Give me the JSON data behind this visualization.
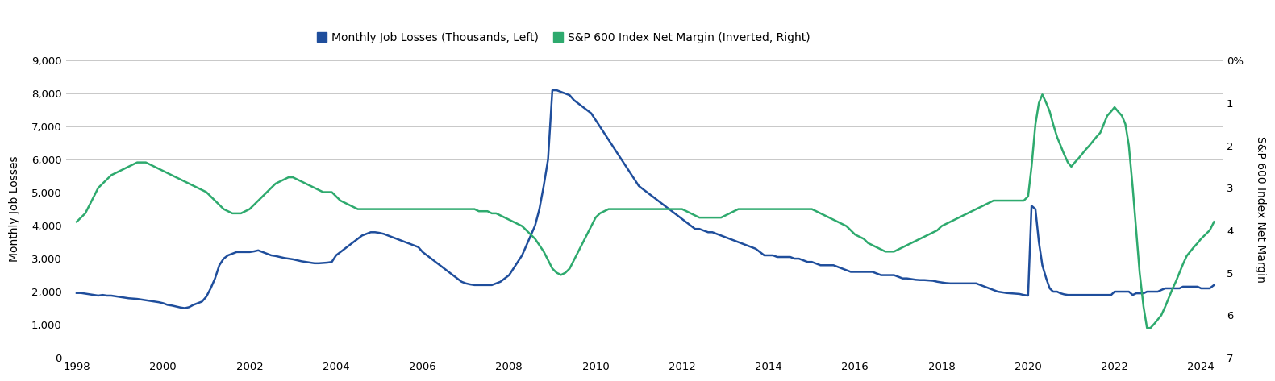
{
  "legend_labels": [
    "Monthly Job Losses (Thousands, Left)",
    "S&P 600 Index Net Margin (Inverted, Right)"
  ],
  "legend_colors": [
    "#1f4e9c",
    "#2eaa6e"
  ],
  "line_blue_color": "#1f4e9c",
  "line_green_color": "#2eaa6e",
  "left_ylabel": "Monthly Job Losses",
  "right_ylabel": "S&P 600 Index Net Margin",
  "left_ylim": [
    0,
    9000
  ],
  "left_yticks": [
    0,
    1000,
    2000,
    3000,
    4000,
    5000,
    6000,
    7000,
    8000,
    9000
  ],
  "right_ylim": [
    0,
    7
  ],
  "right_yticks": [
    0,
    1,
    2,
    3,
    4,
    5,
    6,
    7
  ],
  "right_yticklabels": [
    "0%",
    "1",
    "2",
    "3",
    "4",
    "5",
    "6",
    "7"
  ],
  "xlim_start": 1997.75,
  "xlim_end": 2024.5,
  "xticks": [
    1998,
    2000,
    2002,
    2004,
    2006,
    2008,
    2010,
    2012,
    2014,
    2016,
    2018,
    2020,
    2022,
    2024
  ],
  "background_color": "#ffffff",
  "grid_color": "#c8c8c8",
  "blue_x": [
    1998.0,
    1998.1,
    1998.2,
    1998.3,
    1998.4,
    1998.5,
    1998.6,
    1998.7,
    1998.8,
    1998.9,
    1999.0,
    1999.1,
    1999.2,
    1999.3,
    1999.4,
    1999.5,
    1999.6,
    1999.7,
    1999.8,
    1999.9,
    2000.0,
    2000.1,
    2000.2,
    2000.3,
    2000.4,
    2000.5,
    2000.6,
    2000.7,
    2000.8,
    2000.9,
    2001.0,
    2001.1,
    2001.2,
    2001.3,
    2001.4,
    2001.5,
    2001.6,
    2001.7,
    2001.8,
    2001.9,
    2002.0,
    2002.1,
    2002.2,
    2002.3,
    2002.4,
    2002.5,
    2002.6,
    2002.7,
    2002.8,
    2002.9,
    2003.0,
    2003.1,
    2003.2,
    2003.3,
    2003.4,
    2003.5,
    2003.6,
    2003.7,
    2003.8,
    2003.9,
    2004.0,
    2004.1,
    2004.2,
    2004.3,
    2004.4,
    2004.5,
    2004.6,
    2004.7,
    2004.8,
    2004.9,
    2005.0,
    2005.1,
    2005.2,
    2005.3,
    2005.4,
    2005.5,
    2005.6,
    2005.7,
    2005.8,
    2005.9,
    2006.0,
    2006.1,
    2006.2,
    2006.3,
    2006.4,
    2006.5,
    2006.6,
    2006.7,
    2006.8,
    2006.9,
    2007.0,
    2007.1,
    2007.2,
    2007.3,
    2007.4,
    2007.5,
    2007.6,
    2007.7,
    2007.8,
    2007.9,
    2008.0,
    2008.1,
    2008.2,
    2008.3,
    2008.4,
    2008.5,
    2008.6,
    2008.7,
    2008.8,
    2008.9,
    2009.0,
    2009.1,
    2009.2,
    2009.3,
    2009.4,
    2009.5,
    2009.6,
    2009.7,
    2009.8,
    2009.9,
    2010.0,
    2010.1,
    2010.2,
    2010.3,
    2010.4,
    2010.5,
    2010.6,
    2010.7,
    2010.8,
    2010.9,
    2011.0,
    2011.1,
    2011.2,
    2011.3,
    2011.4,
    2011.5,
    2011.6,
    2011.7,
    2011.8,
    2011.9,
    2012.0,
    2012.1,
    2012.2,
    2012.3,
    2012.4,
    2012.5,
    2012.6,
    2012.7,
    2012.8,
    2012.9,
    2013.0,
    2013.1,
    2013.2,
    2013.3,
    2013.4,
    2013.5,
    2013.6,
    2013.7,
    2013.8,
    2013.9,
    2014.0,
    2014.1,
    2014.2,
    2014.3,
    2014.4,
    2014.5,
    2014.6,
    2014.7,
    2014.8,
    2014.9,
    2015.0,
    2015.1,
    2015.2,
    2015.3,
    2015.4,
    2015.5,
    2015.6,
    2015.7,
    2015.8,
    2015.9,
    2016.0,
    2016.1,
    2016.2,
    2016.3,
    2016.4,
    2016.5,
    2016.6,
    2016.7,
    2016.8,
    2016.9,
    2017.0,
    2017.1,
    2017.2,
    2017.3,
    2017.4,
    2017.5,
    2017.6,
    2017.7,
    2017.8,
    2017.9,
    2018.0,
    2018.1,
    2018.2,
    2018.3,
    2018.4,
    2018.5,
    2018.6,
    2018.7,
    2018.8,
    2018.9,
    2019.0,
    2019.1,
    2019.2,
    2019.3,
    2019.4,
    2019.5,
    2019.6,
    2019.7,
    2019.8,
    2019.9,
    2020.0,
    2020.08,
    2020.17,
    2020.25,
    2020.33,
    2020.42,
    2020.5,
    2020.58,
    2020.67,
    2020.75,
    2020.83,
    2020.92,
    2021.0,
    2021.08,
    2021.17,
    2021.25,
    2021.33,
    2021.42,
    2021.5,
    2021.58,
    2021.67,
    2021.75,
    2021.83,
    2021.92,
    2022.0,
    2022.08,
    2022.17,
    2022.25,
    2022.33,
    2022.42,
    2022.5,
    2022.58,
    2022.67,
    2022.75,
    2022.83,
    2022.92,
    2023.0,
    2023.08,
    2023.17,
    2023.25,
    2023.33,
    2023.42,
    2023.5,
    2023.58,
    2023.67,
    2023.75,
    2023.83,
    2023.92,
    2024.0,
    2024.1,
    2024.2,
    2024.3
  ],
  "blue_y": [
    1960,
    1960,
    1940,
    1920,
    1900,
    1880,
    1900,
    1880,
    1880,
    1860,
    1840,
    1820,
    1800,
    1790,
    1780,
    1760,
    1740,
    1720,
    1700,
    1680,
    1650,
    1600,
    1580,
    1550,
    1520,
    1500,
    1530,
    1600,
    1650,
    1700,
    1850,
    2100,
    2400,
    2800,
    3000,
    3100,
    3150,
    3200,
    3200,
    3200,
    3200,
    3220,
    3250,
    3200,
    3150,
    3100,
    3080,
    3050,
    3020,
    3000,
    2980,
    2950,
    2920,
    2900,
    2880,
    2860,
    2860,
    2870,
    2880,
    2900,
    3100,
    3200,
    3300,
    3400,
    3500,
    3600,
    3700,
    3750,
    3800,
    3800,
    3780,
    3750,
    3700,
    3650,
    3600,
    3550,
    3500,
    3450,
    3400,
    3350,
    3200,
    3100,
    3000,
    2900,
    2800,
    2700,
    2600,
    2500,
    2400,
    2300,
    2250,
    2220,
    2200,
    2200,
    2200,
    2200,
    2200,
    2250,
    2300,
    2400,
    2500,
    2700,
    2900,
    3100,
    3400,
    3700,
    4000,
    4500,
    5200,
    6000,
    8100,
    8100,
    8050,
    8000,
    7950,
    7800,
    7700,
    7600,
    7500,
    7400,
    7200,
    7000,
    6800,
    6600,
    6400,
    6200,
    6000,
    5800,
    5600,
    5400,
    5200,
    5100,
    5000,
    4900,
    4800,
    4700,
    4600,
    4500,
    4400,
    4300,
    4200,
    4100,
    4000,
    3900,
    3900,
    3850,
    3800,
    3800,
    3750,
    3700,
    3650,
    3600,
    3550,
    3500,
    3450,
    3400,
    3350,
    3300,
    3200,
    3100,
    3100,
    3100,
    3050,
    3050,
    3050,
    3050,
    3000,
    3000,
    2950,
    2900,
    2900,
    2850,
    2800,
    2800,
    2800,
    2800,
    2750,
    2700,
    2650,
    2600,
    2600,
    2600,
    2600,
    2600,
    2600,
    2550,
    2500,
    2500,
    2500,
    2500,
    2450,
    2400,
    2400,
    2380,
    2360,
    2350,
    2350,
    2340,
    2330,
    2300,
    2280,
    2260,
    2250,
    2250,
    2250,
    2250,
    2250,
    2250,
    2250,
    2200,
    2150,
    2100,
    2050,
    2000,
    1980,
    1960,
    1950,
    1940,
    1930,
    1900,
    1880,
    4600,
    4500,
    3500,
    2800,
    2400,
    2100,
    2000,
    2000,
    1950,
    1920,
    1900,
    1900,
    1900,
    1900,
    1900,
    1900,
    1900,
    1900,
    1900,
    1900,
    1900,
    1900,
    1900,
    2000,
    2000,
    2000,
    2000,
    2000,
    1900,
    1950,
    1950,
    1950,
    2000,
    2000,
    2000,
    2000,
    2050,
    2100,
    2100,
    2100,
    2100,
    2100,
    2150,
    2150,
    2150,
    2150,
    2150,
    2100,
    2100,
    2100,
    2200
  ],
  "green_x": [
    1998.0,
    1998.1,
    1998.2,
    1998.3,
    1998.4,
    1998.5,
    1998.6,
    1998.7,
    1998.8,
    1998.9,
    1999.0,
    1999.1,
    1999.2,
    1999.3,
    1999.4,
    1999.5,
    1999.6,
    1999.7,
    1999.8,
    1999.9,
    2000.0,
    2000.1,
    2000.2,
    2000.3,
    2000.4,
    2000.5,
    2000.6,
    2000.7,
    2000.8,
    2000.9,
    2001.0,
    2001.1,
    2001.2,
    2001.3,
    2001.4,
    2001.5,
    2001.6,
    2001.7,
    2001.8,
    2001.9,
    2002.0,
    2002.1,
    2002.2,
    2002.3,
    2002.4,
    2002.5,
    2002.6,
    2002.7,
    2002.8,
    2002.9,
    2003.0,
    2003.1,
    2003.2,
    2003.3,
    2003.4,
    2003.5,
    2003.6,
    2003.7,
    2003.8,
    2003.9,
    2004.0,
    2004.1,
    2004.2,
    2004.3,
    2004.4,
    2004.5,
    2004.6,
    2004.7,
    2004.8,
    2004.9,
    2005.0,
    2005.1,
    2005.2,
    2005.3,
    2005.4,
    2005.5,
    2005.6,
    2005.7,
    2005.8,
    2005.9,
    2006.0,
    2006.1,
    2006.2,
    2006.3,
    2006.4,
    2006.5,
    2006.6,
    2006.7,
    2006.8,
    2006.9,
    2007.0,
    2007.1,
    2007.2,
    2007.3,
    2007.4,
    2007.5,
    2007.6,
    2007.7,
    2007.8,
    2007.9,
    2008.0,
    2008.1,
    2008.2,
    2008.3,
    2008.4,
    2008.5,
    2008.6,
    2008.7,
    2008.8,
    2008.9,
    2009.0,
    2009.1,
    2009.2,
    2009.3,
    2009.4,
    2009.5,
    2009.6,
    2009.7,
    2009.8,
    2009.9,
    2010.0,
    2010.1,
    2010.2,
    2010.3,
    2010.4,
    2010.5,
    2010.6,
    2010.7,
    2010.8,
    2010.9,
    2011.0,
    2011.1,
    2011.2,
    2011.3,
    2011.4,
    2011.5,
    2011.6,
    2011.7,
    2011.8,
    2011.9,
    2012.0,
    2012.1,
    2012.2,
    2012.3,
    2012.4,
    2012.5,
    2012.6,
    2012.7,
    2012.8,
    2012.9,
    2013.0,
    2013.1,
    2013.2,
    2013.3,
    2013.4,
    2013.5,
    2013.6,
    2013.7,
    2013.8,
    2013.9,
    2014.0,
    2014.1,
    2014.2,
    2014.3,
    2014.4,
    2014.5,
    2014.6,
    2014.7,
    2014.8,
    2014.9,
    2015.0,
    2015.1,
    2015.2,
    2015.3,
    2015.4,
    2015.5,
    2015.6,
    2015.7,
    2015.8,
    2015.9,
    2016.0,
    2016.1,
    2016.2,
    2016.3,
    2016.4,
    2016.5,
    2016.6,
    2016.7,
    2016.8,
    2016.9,
    2017.0,
    2017.1,
    2017.2,
    2017.3,
    2017.4,
    2017.5,
    2017.6,
    2017.7,
    2017.8,
    2017.9,
    2018.0,
    2018.1,
    2018.2,
    2018.3,
    2018.4,
    2018.5,
    2018.6,
    2018.7,
    2018.8,
    2018.9,
    2019.0,
    2019.1,
    2019.2,
    2019.3,
    2019.4,
    2019.5,
    2019.6,
    2019.7,
    2019.8,
    2019.9,
    2020.0,
    2020.08,
    2020.17,
    2020.25,
    2020.33,
    2020.42,
    2020.5,
    2020.58,
    2020.67,
    2020.75,
    2020.83,
    2020.92,
    2021.0,
    2021.08,
    2021.17,
    2021.25,
    2021.33,
    2021.42,
    2021.5,
    2021.58,
    2021.67,
    2021.75,
    2021.83,
    2021.92,
    2022.0,
    2022.08,
    2022.17,
    2022.25,
    2022.33,
    2022.42,
    2022.5,
    2022.58,
    2022.67,
    2022.75,
    2022.83,
    2022.92,
    2023.0,
    2023.08,
    2023.17,
    2023.25,
    2023.33,
    2023.42,
    2023.5,
    2023.58,
    2023.67,
    2023.75,
    2023.83,
    2023.92,
    2024.0,
    2024.1,
    2024.2,
    2024.3
  ],
  "green_y": [
    3.8,
    3.7,
    3.6,
    3.4,
    3.2,
    3.0,
    2.9,
    2.8,
    2.7,
    2.65,
    2.6,
    2.55,
    2.5,
    2.45,
    2.4,
    2.4,
    2.4,
    2.45,
    2.5,
    2.55,
    2.6,
    2.65,
    2.7,
    2.75,
    2.8,
    2.85,
    2.9,
    2.95,
    3.0,
    3.05,
    3.1,
    3.2,
    3.3,
    3.4,
    3.5,
    3.55,
    3.6,
    3.6,
    3.6,
    3.55,
    3.5,
    3.4,
    3.3,
    3.2,
    3.1,
    3.0,
    2.9,
    2.85,
    2.8,
    2.75,
    2.75,
    2.8,
    2.85,
    2.9,
    2.95,
    3.0,
    3.05,
    3.1,
    3.1,
    3.1,
    3.2,
    3.3,
    3.35,
    3.4,
    3.45,
    3.5,
    3.5,
    3.5,
    3.5,
    3.5,
    3.5,
    3.5,
    3.5,
    3.5,
    3.5,
    3.5,
    3.5,
    3.5,
    3.5,
    3.5,
    3.5,
    3.5,
    3.5,
    3.5,
    3.5,
    3.5,
    3.5,
    3.5,
    3.5,
    3.5,
    3.5,
    3.5,
    3.5,
    3.55,
    3.55,
    3.55,
    3.6,
    3.6,
    3.65,
    3.7,
    3.75,
    3.8,
    3.85,
    3.9,
    4.0,
    4.1,
    4.2,
    4.35,
    4.5,
    4.7,
    4.9,
    5.0,
    5.05,
    5.0,
    4.9,
    4.7,
    4.5,
    4.3,
    4.1,
    3.9,
    3.7,
    3.6,
    3.55,
    3.5,
    3.5,
    3.5,
    3.5,
    3.5,
    3.5,
    3.5,
    3.5,
    3.5,
    3.5,
    3.5,
    3.5,
    3.5,
    3.5,
    3.5,
    3.5,
    3.5,
    3.5,
    3.55,
    3.6,
    3.65,
    3.7,
    3.7,
    3.7,
    3.7,
    3.7,
    3.7,
    3.65,
    3.6,
    3.55,
    3.5,
    3.5,
    3.5,
    3.5,
    3.5,
    3.5,
    3.5,
    3.5,
    3.5,
    3.5,
    3.5,
    3.5,
    3.5,
    3.5,
    3.5,
    3.5,
    3.5,
    3.5,
    3.55,
    3.6,
    3.65,
    3.7,
    3.75,
    3.8,
    3.85,
    3.9,
    4.0,
    4.1,
    4.15,
    4.2,
    4.3,
    4.35,
    4.4,
    4.45,
    4.5,
    4.5,
    4.5,
    4.45,
    4.4,
    4.35,
    4.3,
    4.25,
    4.2,
    4.15,
    4.1,
    4.05,
    4.0,
    3.9,
    3.85,
    3.8,
    3.75,
    3.7,
    3.65,
    3.6,
    3.55,
    3.5,
    3.45,
    3.4,
    3.35,
    3.3,
    3.3,
    3.3,
    3.3,
    3.3,
    3.3,
    3.3,
    3.3,
    3.2,
    2.5,
    1.5,
    1.0,
    0.8,
    1.0,
    1.2,
    1.5,
    1.8,
    2.0,
    2.2,
    2.4,
    2.5,
    2.4,
    2.3,
    2.2,
    2.1,
    2.0,
    1.9,
    1.8,
    1.7,
    1.5,
    1.3,
    1.2,
    1.1,
    1.2,
    1.3,
    1.5,
    2.0,
    3.0,
    4.0,
    5.0,
    5.8,
    6.3,
    6.3,
    6.2,
    6.1,
    6.0,
    5.8,
    5.6,
    5.4,
    5.2,
    5.0,
    4.8,
    4.6,
    4.5,
    4.4,
    4.3,
    4.2,
    4.1,
    4.0,
    3.8
  ]
}
